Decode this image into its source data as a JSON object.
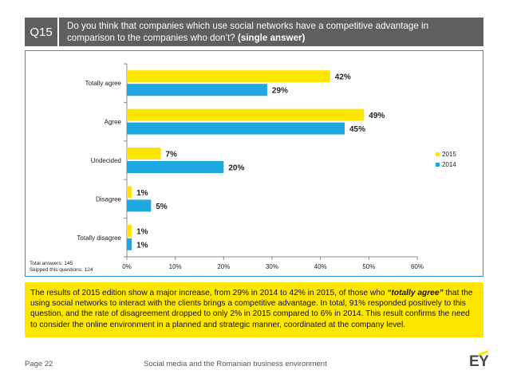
{
  "header": {
    "badge": "Q15",
    "question": "Do you think that companies which use social networks have a competitive advantage in comparison to the companies who don’t?",
    "question_suffix": "(single answer)"
  },
  "chart_data": {
    "type": "bar",
    "orientation": "horizontal",
    "categories": [
      "Totally agree",
      "Agree",
      "Undecided",
      "Disagree",
      "Totally disagree"
    ],
    "series": [
      {
        "name": "2015",
        "color": "#ffe600",
        "values": [
          42,
          49,
          7,
          1,
          1
        ]
      },
      {
        "name": "2014",
        "color": "#1fa8e0",
        "values": [
          29,
          45,
          20,
          5,
          1
        ]
      }
    ],
    "xlim": [
      0,
      60
    ],
    "xticks": [
      0,
      10,
      20,
      30,
      40,
      50,
      60
    ],
    "tick_suffix": "%",
    "value_suffix": "%",
    "legend_position": "right",
    "grid": false
  },
  "chart_note": {
    "total": "Total answers: 145",
    "skipped": "Skipped this questions: 124"
  },
  "summary": {
    "part1": "The results of 2015 edition show a major increase, from 29% in 2014 to 42% in 2015, of those who ",
    "quote": "“totally agree”",
    "part2": " that the using social networks to interact with the clients brings a competitive advantage. In total, 91% responded positively to this question, and the rate of disagreement dropped to only 2% in 2015 compared to 6% in 2014. This result confirms the need to consider the online environment in a planned and strategic manner, coordinated at the company level."
  },
  "footer": {
    "page": "Page 22",
    "title": "Social media and the Romanian business environment",
    "logo": "EY"
  }
}
